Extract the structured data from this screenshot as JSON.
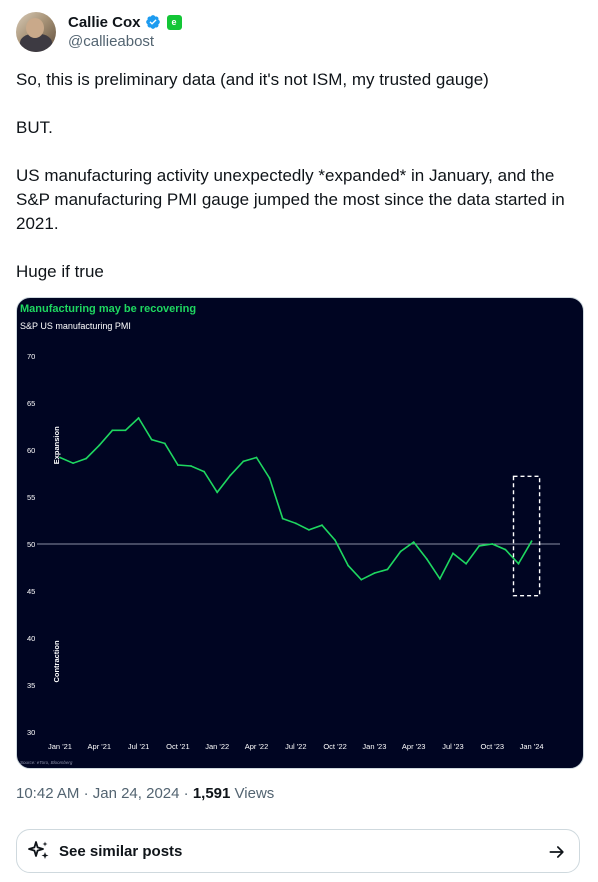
{
  "author": {
    "name": "Callie Cox",
    "handle": "@callieabost",
    "badge_text": "e"
  },
  "post": {
    "paragraphs": [
      "So, this is preliminary data (and it's not ISM, my trusted gauge)",
      "BUT.",
      "US manufacturing activity unexpectedly *expanded* in January, and the S&P manufacturing PMI gauge jumped the most since the data started in 2021.",
      "Huge if true"
    ]
  },
  "meta": {
    "time": "10:42 AM",
    "date": "Jan 24, 2024",
    "separator": "·",
    "views_count": "1,591",
    "views_label": "Views"
  },
  "similar": {
    "label": "See similar posts"
  },
  "colors": {
    "accent_green": "#1ed760",
    "chart_bg": "#000522",
    "verified_blue": "#1d9bf0",
    "etoro_green": "#13c636"
  },
  "chart_data": {
    "type": "line",
    "title": "Manufacturing may be recovering",
    "subtitle": "S&P US manufacturing PMI",
    "ylabel_top": "Expansion",
    "ylabel_bottom": "Contraction",
    "source": "Source: eToro, Bloomberg",
    "ylim": [
      30,
      70
    ],
    "yticks": [
      70,
      65,
      60,
      55,
      50,
      45,
      40,
      35,
      30
    ],
    "xticks": [
      {
        "label": "Jan '21",
        "index": 0
      },
      {
        "label": "Apr '21",
        "index": 3
      },
      {
        "label": "Jul '21",
        "index": 6
      },
      {
        "label": "Oct '21",
        "index": 9
      },
      {
        "label": "Jan '22",
        "index": 12
      },
      {
        "label": "Apr '22",
        "index": 15
      },
      {
        "label": "Jul '22",
        "index": 18
      },
      {
        "label": "Oct '22",
        "index": 21
      },
      {
        "label": "Jan '23",
        "index": 24
      },
      {
        "label": "Apr '23",
        "index": 27
      },
      {
        "label": "Jul '23",
        "index": 30
      },
      {
        "label": "Oct '23",
        "index": 33
      },
      {
        "label": "Jan '24",
        "index": 36
      }
    ],
    "reference_line": 50,
    "grid": false,
    "series": [
      {
        "values": [
          59.2,
          58.6,
          59.1,
          60.5,
          62.1,
          62.1,
          63.4,
          61.1,
          60.7,
          58.4,
          58.3,
          57.7,
          55.5,
          57.3,
          58.8,
          59.2,
          57.0,
          52.7,
          52.2,
          51.5,
          52.0,
          50.4,
          47.7,
          46.2,
          46.9,
          47.3,
          49.2,
          50.2,
          48.4,
          46.3,
          49.0,
          47.9,
          49.8,
          50.0,
          49.4,
          47.9,
          50.3
        ]
      }
    ],
    "highlight_box": {
      "from_index": 35,
      "to_index": 36,
      "ymin": 44.5,
      "ymax": 57.2
    }
  }
}
